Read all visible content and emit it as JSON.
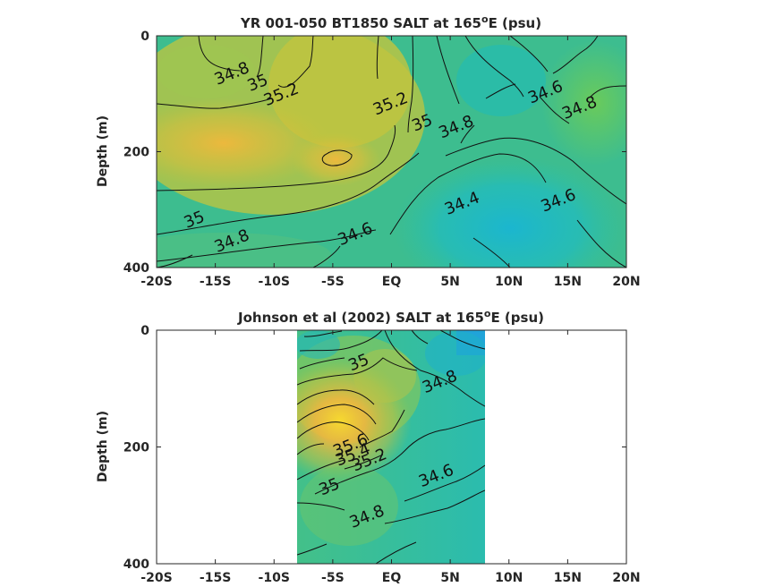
{
  "chart_data": [
    {
      "type": "contour",
      "title_main": "YR 001-050 BT1850 SALT at 165",
      "title_sup": "o",
      "title_end": "E (psu)",
      "ylabel": "Depth (m)",
      "xlim": [
        -20,
        20
      ],
      "ylim": [
        0,
        400
      ],
      "x_ticks": [
        -20,
        -15,
        -10,
        -5,
        0,
        5,
        10,
        15,
        20
      ],
      "x_tick_labels": [
        "-20S",
        "-15S",
        "-10S",
        "-5S",
        "EQ",
        "5N",
        "10N",
        "15N",
        "20N"
      ],
      "y_ticks": [
        0,
        200,
        400
      ],
      "y_tick_labels": [
        "0",
        "200",
        "400"
      ],
      "contour_labels": [
        {
          "text": "34.8",
          "x": -13.6,
          "y": 65
        },
        {
          "text": "35",
          "x": -11.4,
          "y": 81
        },
        {
          "text": "35.2",
          "x": -9.4,
          "y": 101
        },
        {
          "text": "35.2",
          "x": -0.1,
          "y": 117
        },
        {
          "text": "35",
          "x": 2.6,
          "y": 150
        },
        {
          "text": "34.8",
          "x": 5.5,
          "y": 157
        },
        {
          "text": "34.6",
          "x": 13.1,
          "y": 97
        },
        {
          "text": "34.8",
          "x": 16.0,
          "y": 124
        },
        {
          "text": "34.6",
          "x": 14.2,
          "y": 284
        },
        {
          "text": "34.4",
          "x": 6.0,
          "y": 289
        },
        {
          "text": "35",
          "x": -16.8,
          "y": 317
        },
        {
          "text": "34.8",
          "x": -13.6,
          "y": 354
        },
        {
          "text": "34.6",
          "x": -3.1,
          "y": 342
        }
      ]
    },
    {
      "type": "contour",
      "title_main": "Johnson et al (2002) SALT at 165",
      "title_sup": "o",
      "title_end": "E (psu)",
      "ylabel": "Depth (m)",
      "xlim": [
        -20,
        20
      ],
      "ylim": [
        0,
        400
      ],
      "data_extent_x": [
        -8,
        8
      ],
      "x_ticks": [
        -20,
        -15,
        -10,
        -5,
        0,
        5,
        10,
        15,
        20
      ],
      "x_tick_labels": [
        "-20S",
        "-15S",
        "-10S",
        "-5S",
        "EQ",
        "5N",
        "10N",
        "15N",
        "20N"
      ],
      "y_ticks": [
        0,
        200,
        400
      ],
      "y_tick_labels": [
        "0",
        "200",
        "400"
      ],
      "contour_labels": [
        {
          "text": "35",
          "x": -2.8,
          "y": 55
        },
        {
          "text": "34.8",
          "x": 4.1,
          "y": 88
        },
        {
          "text": "35.6",
          "x": -3.5,
          "y": 197
        },
        {
          "text": "35.4",
          "x": -3.3,
          "y": 213
        },
        {
          "text": "35.2",
          "x": -1.9,
          "y": 222
        },
        {
          "text": "35",
          "x": -5.3,
          "y": 268
        },
        {
          "text": "34.6",
          "x": 3.8,
          "y": 249
        },
        {
          "text": "34.8",
          "x": -2.1,
          "y": 319
        }
      ]
    }
  ]
}
